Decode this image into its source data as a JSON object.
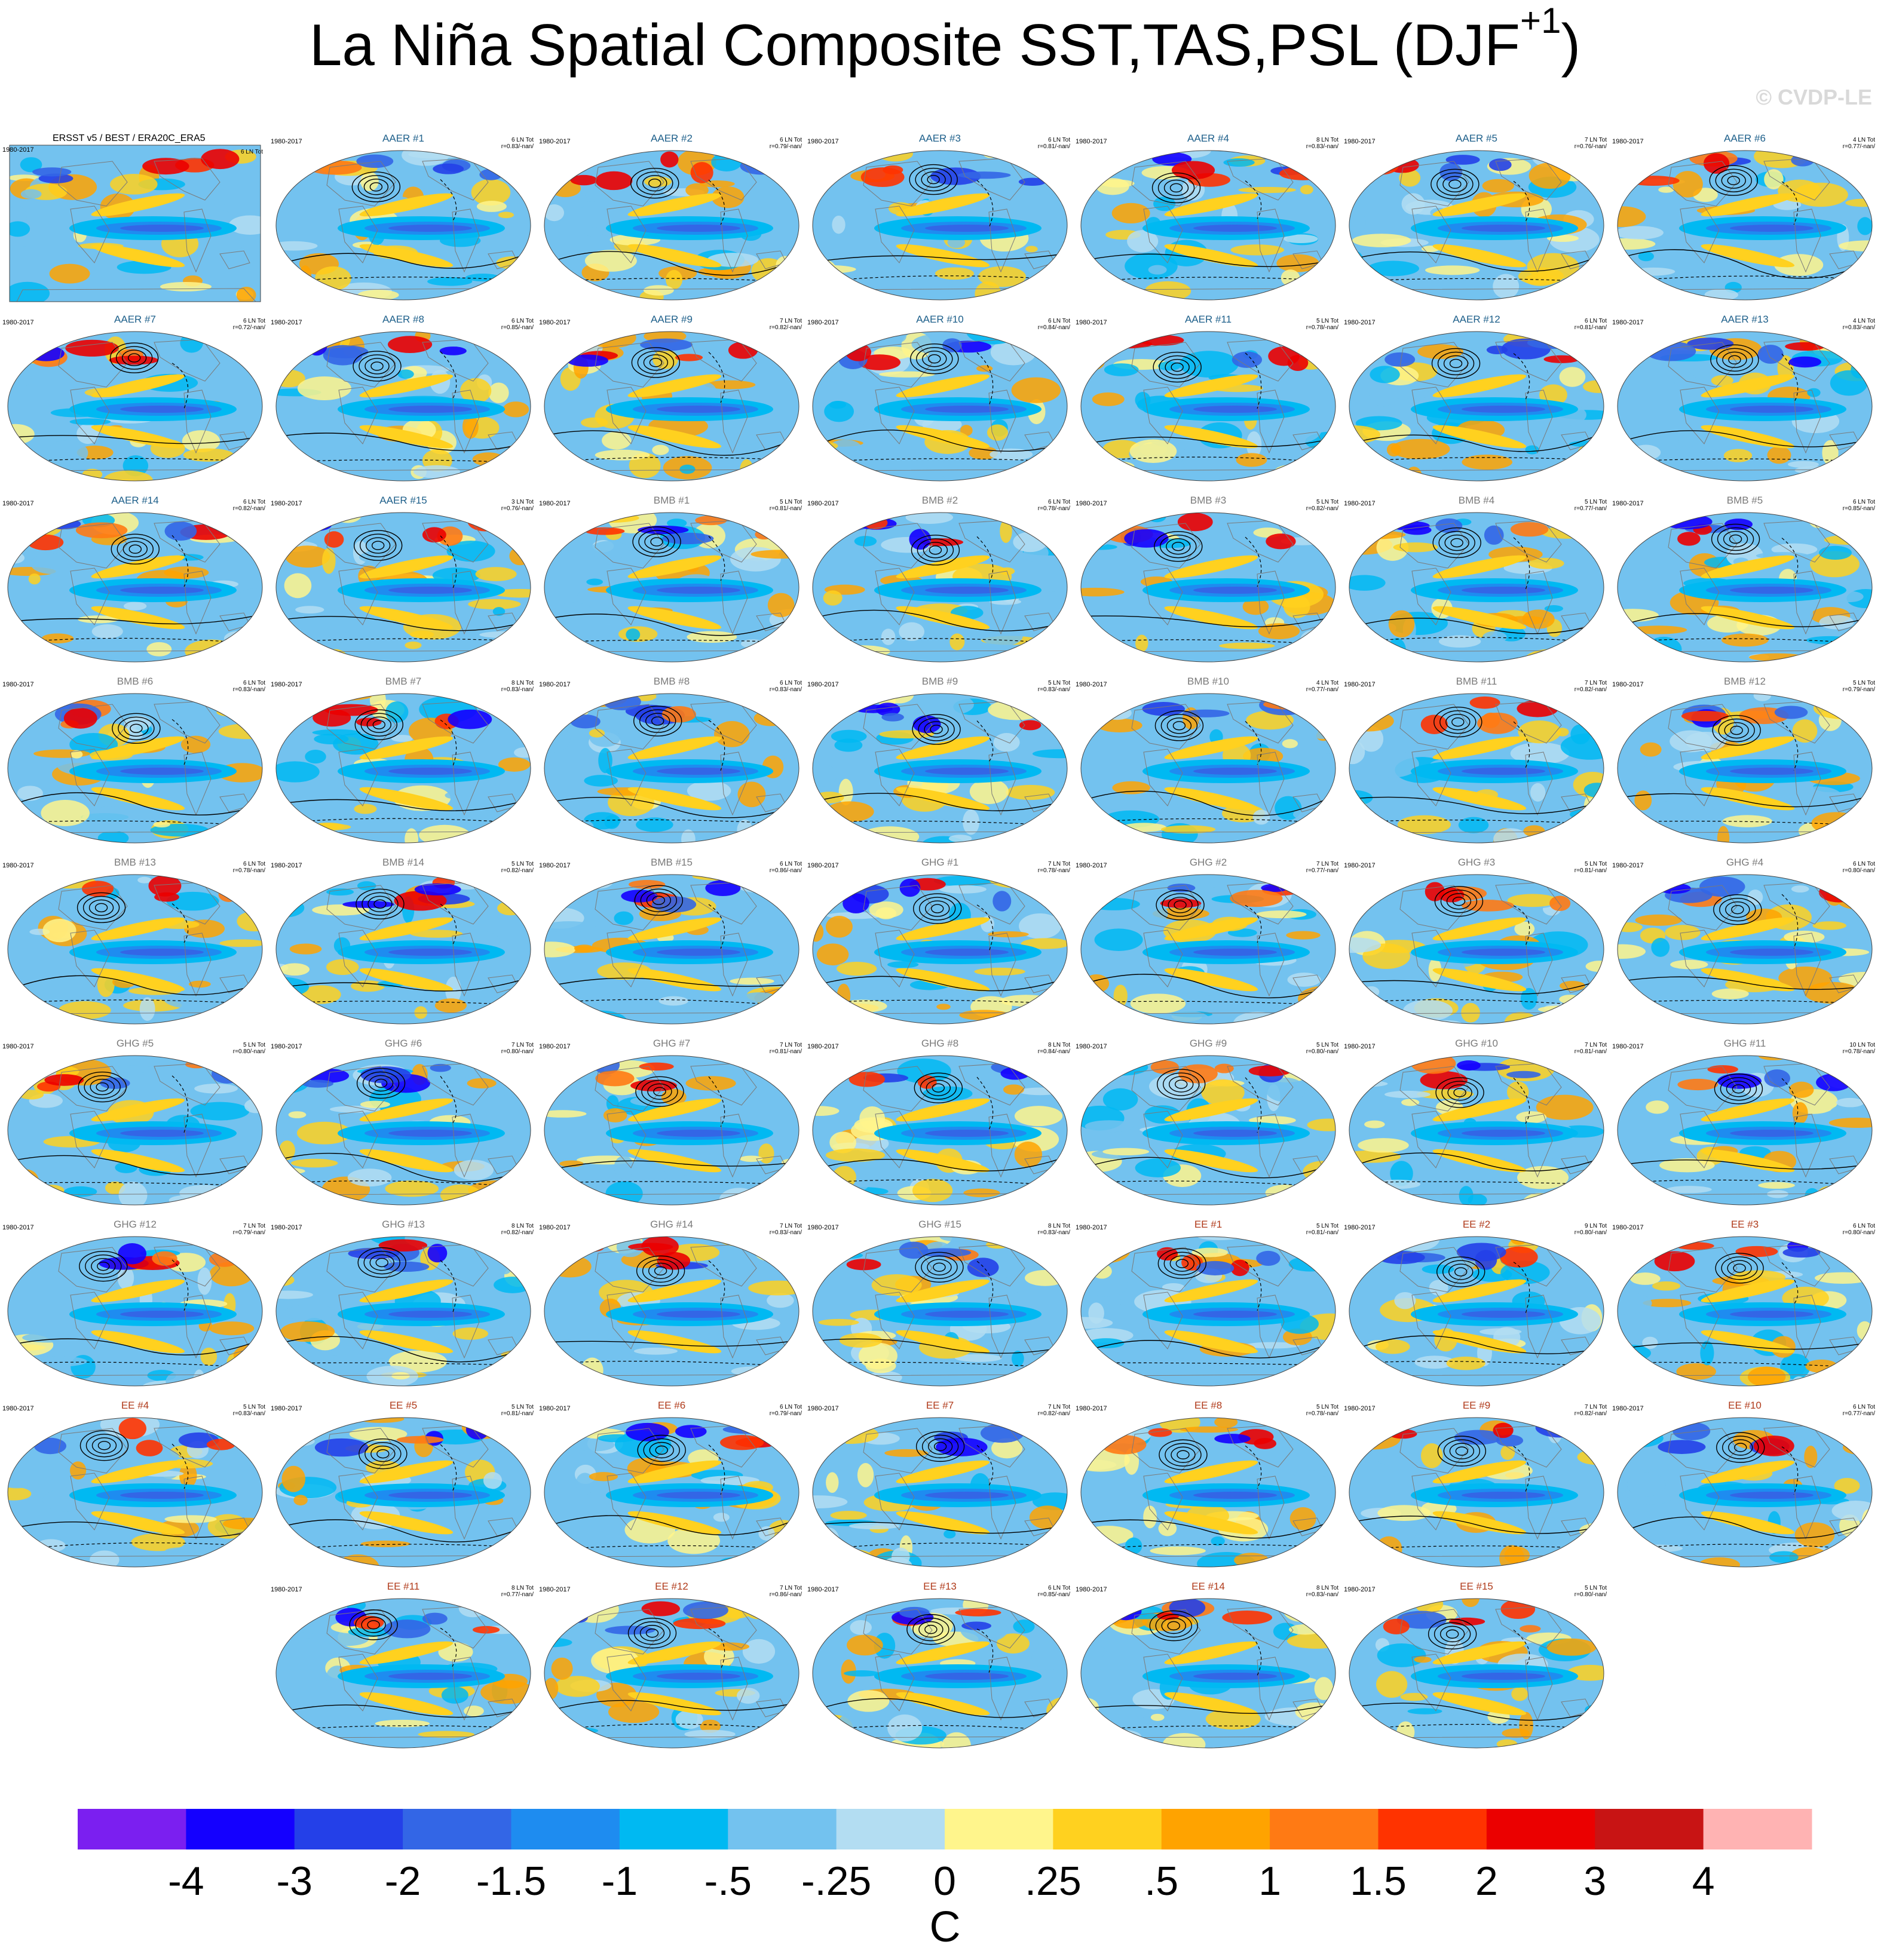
{
  "header": {
    "title": "La Niña Spatial Composite SST,TAS,PSL (DJF",
    "title_superscript": "+1",
    "title_close": ")",
    "watermark": "© CVDP-LE"
  },
  "panels": [
    {
      "title": "ERSST v5 / BEST / ERA20C_ERA5",
      "years": "1980-2017",
      "count": "6 LN Tot",
      "corr": "",
      "group": "obs"
    },
    {
      "title": "AAER #1",
      "years": "1980-2017",
      "count": "6 LN Tot",
      "corr": "r=0.83/-nan/",
      "group": "AAER"
    },
    {
      "title": "AAER #2",
      "years": "1980-2017",
      "count": "6 LN Tot",
      "corr": "r=0.79/-nan/",
      "group": "AAER"
    },
    {
      "title": "AAER #3",
      "years": "1980-2017",
      "count": "6 LN Tot",
      "corr": "r=0.81/-nan/",
      "group": "AAER"
    },
    {
      "title": "AAER #4",
      "years": "1980-2017",
      "count": "8 LN Tot",
      "corr": "r=0.83/-nan/",
      "group": "AAER"
    },
    {
      "title": "AAER #5",
      "years": "1980-2017",
      "count": "7 LN Tot",
      "corr": "r=0.76/-nan/",
      "group": "AAER"
    },
    {
      "title": "AAER #6",
      "years": "1980-2017",
      "count": "4 LN Tot",
      "corr": "r=0.77/-nan/",
      "group": "AAER"
    },
    {
      "title": "AAER #7",
      "years": "1980-2017",
      "count": "6 LN Tot",
      "corr": "r=0.72/-nan/",
      "group": "AAER"
    },
    {
      "title": "AAER #8",
      "years": "1980-2017",
      "count": "6 LN Tot",
      "corr": "r=0.85/-nan/",
      "group": "AAER"
    },
    {
      "title": "AAER #9",
      "years": "1980-2017",
      "count": "7 LN Tot",
      "corr": "r=0.82/-nan/",
      "group": "AAER"
    },
    {
      "title": "AAER #10",
      "years": "1980-2017",
      "count": "6 LN Tot",
      "corr": "r=0.84/-nan/",
      "group": "AAER"
    },
    {
      "title": "AAER #11",
      "years": "1980-2017",
      "count": "5 LN Tot",
      "corr": "r=0.78/-nan/",
      "group": "AAER"
    },
    {
      "title": "AAER #12",
      "years": "1980-2017",
      "count": "6 LN Tot",
      "corr": "r=0.81/-nan/",
      "group": "AAER"
    },
    {
      "title": "AAER #13",
      "years": "1980-2017",
      "count": "4 LN Tot",
      "corr": "r=0.83/-nan/",
      "group": "AAER"
    },
    {
      "title": "AAER #14",
      "years": "1980-2017",
      "count": "6 LN Tot",
      "corr": "r=0.82/-nan/",
      "group": "AAER"
    },
    {
      "title": "AAER #15",
      "years": "1980-2017",
      "count": "3 LN Tot",
      "corr": "r=0.76/-nan/",
      "group": "AAER"
    },
    {
      "title": "BMB #1",
      "years": "1980-2017",
      "count": "5 LN Tot",
      "corr": "r=0.81/-nan/",
      "group": "BMB"
    },
    {
      "title": "BMB #2",
      "years": "1980-2017",
      "count": "6 LN Tot",
      "corr": "r=0.78/-nan/",
      "group": "BMB"
    },
    {
      "title": "BMB #3",
      "years": "1980-2017",
      "count": "5 LN Tot",
      "corr": "r=0.82/-nan/",
      "group": "BMB"
    },
    {
      "title": "BMB #4",
      "years": "1980-2017",
      "count": "5 LN Tot",
      "corr": "r=0.77/-nan/",
      "group": "BMB"
    },
    {
      "title": "BMB #5",
      "years": "1980-2017",
      "count": "6 LN Tot",
      "corr": "r=0.85/-nan/",
      "group": "BMB"
    },
    {
      "title": "BMB #6",
      "years": "1980-2017",
      "count": "6 LN Tot",
      "corr": "r=0.83/-nan/",
      "group": "BMB"
    },
    {
      "title": "BMB #7",
      "years": "1980-2017",
      "count": "8 LN Tot",
      "corr": "r=0.83/-nan/",
      "group": "BMB"
    },
    {
      "title": "BMB #8",
      "years": "1980-2017",
      "count": "6 LN Tot",
      "corr": "r=0.83/-nan/",
      "group": "BMB"
    },
    {
      "title": "BMB #9",
      "years": "1980-2017",
      "count": "5 LN Tot",
      "corr": "r=0.83/-nan/",
      "group": "BMB"
    },
    {
      "title": "BMB #10",
      "years": "1980-2017",
      "count": "4 LN Tot",
      "corr": "r=0.77/-nan/",
      "group": "BMB"
    },
    {
      "title": "BMB #11",
      "years": "1980-2017",
      "count": "7 LN Tot",
      "corr": "r=0.82/-nan/",
      "group": "BMB"
    },
    {
      "title": "BMB #12",
      "years": "1980-2017",
      "count": "5 LN Tot",
      "corr": "r=0.79/-nan/",
      "group": "BMB"
    },
    {
      "title": "BMB #13",
      "years": "1980-2017",
      "count": "6 LN Tot",
      "corr": "r=0.78/-nan/",
      "group": "BMB"
    },
    {
      "title": "BMB #14",
      "years": "1980-2017",
      "count": "5 LN Tot",
      "corr": "r=0.82/-nan/",
      "group": "BMB"
    },
    {
      "title": "BMB #15",
      "years": "1980-2017",
      "count": "6 LN Tot",
      "corr": "r=0.86/-nan/",
      "group": "BMB"
    },
    {
      "title": "GHG #1",
      "years": "1980-2017",
      "count": "7 LN Tot",
      "corr": "r=0.78/-nan/",
      "group": "GHG"
    },
    {
      "title": "GHG #2",
      "years": "1980-2017",
      "count": "7 LN Tot",
      "corr": "r=0.77/-nan/",
      "group": "GHG"
    },
    {
      "title": "GHG #3",
      "years": "1980-2017",
      "count": "5 LN Tot",
      "corr": "r=0.81/-nan/",
      "group": "GHG"
    },
    {
      "title": "GHG #4",
      "years": "1980-2017",
      "count": "6 LN Tot",
      "corr": "r=0.80/-nan/",
      "group": "GHG"
    },
    {
      "title": "GHG #5",
      "years": "1980-2017",
      "count": "5 LN Tot",
      "corr": "r=0.80/-nan/",
      "group": "GHG"
    },
    {
      "title": "GHG #6",
      "years": "1980-2017",
      "count": "7 LN Tot",
      "corr": "r=0.80/-nan/",
      "group": "GHG"
    },
    {
      "title": "GHG #7",
      "years": "1980-2017",
      "count": "7 LN Tot",
      "corr": "r=0.81/-nan/",
      "group": "GHG"
    },
    {
      "title": "GHG #8",
      "years": "1980-2017",
      "count": "8 LN Tot",
      "corr": "r=0.84/-nan/",
      "group": "GHG"
    },
    {
      "title": "GHG #9",
      "years": "1980-2017",
      "count": "5 LN Tot",
      "corr": "r=0.80/-nan/",
      "group": "GHG"
    },
    {
      "title": "GHG #10",
      "years": "1980-2017",
      "count": "7 LN Tot",
      "corr": "r=0.81/-nan/",
      "group": "GHG"
    },
    {
      "title": "GHG #11",
      "years": "1980-2017",
      "count": "10 LN Tot",
      "corr": "r=0.78/-nan/",
      "group": "GHG"
    },
    {
      "title": "GHG #12",
      "years": "1980-2017",
      "count": "7 LN Tot",
      "corr": "r=0.79/-nan/",
      "group": "GHG"
    },
    {
      "title": "GHG #13",
      "years": "1980-2017",
      "count": "8 LN Tot",
      "corr": "r=0.82/-nan/",
      "group": "GHG"
    },
    {
      "title": "GHG #14",
      "years": "1980-2017",
      "count": "7 LN Tot",
      "corr": "r=0.83/-nan/",
      "group": "GHG"
    },
    {
      "title": "GHG #15",
      "years": "1980-2017",
      "count": "8 LN Tot",
      "corr": "r=0.83/-nan/",
      "group": "GHG"
    },
    {
      "title": "EE #1",
      "years": "1980-2017",
      "count": "5 LN Tot",
      "corr": "r=0.81/-nan/",
      "group": "EE"
    },
    {
      "title": "EE #2",
      "years": "1980-2017",
      "count": "9 LN Tot",
      "corr": "r=0.80/-nan/",
      "group": "EE"
    },
    {
      "title": "EE #3",
      "years": "1980-2017",
      "count": "6 LN Tot",
      "corr": "r=0.80/-nan/",
      "group": "EE"
    },
    {
      "title": "EE #4",
      "years": "1980-2017",
      "count": "5 LN Tot",
      "corr": "r=0.83/-nan/",
      "group": "EE"
    },
    {
      "title": "EE #5",
      "years": "1980-2017",
      "count": "5 LN Tot",
      "corr": "r=0.81/-nan/",
      "group": "EE"
    },
    {
      "title": "EE #6",
      "years": "1980-2017",
      "count": "6 LN Tot",
      "corr": "r=0.79/-nan/",
      "group": "EE"
    },
    {
      "title": "EE #7",
      "years": "1980-2017",
      "count": "7 LN Tot",
      "corr": "r=0.82/-nan/",
      "group": "EE"
    },
    {
      "title": "EE #8",
      "years": "1980-2017",
      "count": "5 LN Tot",
      "corr": "r=0.78/-nan/",
      "group": "EE"
    },
    {
      "title": "EE #9",
      "years": "1980-2017",
      "count": "7 LN Tot",
      "corr": "r=0.82/-nan/",
      "group": "EE"
    },
    {
      "title": "EE #10",
      "years": "1980-2017",
      "count": "6 LN Tot",
      "corr": "r=0.77/-nan/",
      "group": "EE"
    },
    {
      "title": "EE #11",
      "years": "1980-2017",
      "count": "8 LN Tot",
      "corr": "r=0.77/-nan/",
      "group": "EE"
    },
    {
      "title": "EE #12",
      "years": "1980-2017",
      "count": "7 LN Tot",
      "corr": "r=0.86/-nan/",
      "group": "EE"
    },
    {
      "title": "EE #13",
      "years": "1980-2017",
      "count": "6 LN Tot",
      "corr": "r=0.85/-nan/",
      "group": "EE"
    },
    {
      "title": "EE #14",
      "years": "1980-2017",
      "count": "8 LN Tot",
      "corr": "r=0.83/-nan/",
      "group": "EE"
    },
    {
      "title": "EE #15",
      "years": "1980-2017",
      "count": "5 LN Tot",
      "corr": "r=0.80/-nan/",
      "group": "EE"
    }
  ],
  "group_colors": {
    "obs": "#000000",
    "AAER": "#1d5f8a",
    "BMB": "#7a7a7a",
    "GHG": "#7a7a7a",
    "EE": "#b03a1a"
  },
  "map_colors": {
    "ocean_base": "#73c2ef",
    "land": "#b3ddf2",
    "outline": "#7a7a7a",
    "contour": "#000000"
  },
  "chart_data": {
    "type": "heatmap",
    "title": "La Niña Spatial Composite SST,TAS,PSL (DJF+1)",
    "colorbar": {
      "unit": "C",
      "levels": [
        "-4",
        "-3",
        "-2",
        "-1.5",
        "-1",
        "-.5",
        "-.25",
        "0",
        ".25",
        ".5",
        "1",
        "1.5",
        "2",
        "3",
        "4"
      ],
      "colors": [
        "#7b1ff0",
        "#1400ff",
        "#2440e8",
        "#3366e6",
        "#1e8cf0",
        "#00b9f2",
        "#73c2ef",
        "#b3ddf2",
        "#fff58c",
        "#ffd11f",
        "#ffa300",
        "#ff7a14",
        "#ff3300",
        "#eb0000",
        "#c81414",
        "#ffb3b3"
      ]
    }
  }
}
